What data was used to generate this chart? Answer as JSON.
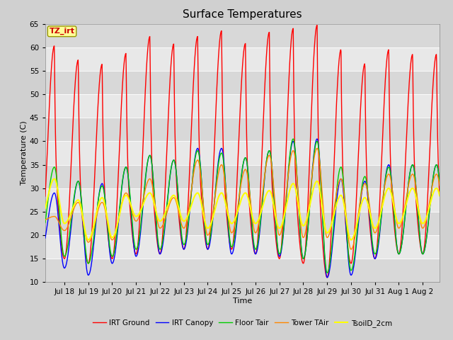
{
  "title": "Surface Temperatures",
  "xlabel": "Time",
  "ylabel": "Temperature (C)",
  "ylim": [
    10,
    65
  ],
  "xtick_labels": [
    "Jul 18",
    "Jul 19",
    "Jul 20",
    "Jul 21",
    "Jul 22",
    "Jul 23",
    "Jul 24",
    "Jul 25",
    "Jul 26",
    "Jul 27",
    "Jul 28",
    "Jul 29",
    "Jul 30",
    "Jul 31",
    "Aug 1",
    "Aug 2"
  ],
  "series": {
    "IRT Ground": {
      "color": "#ff0000",
      "linewidth": 1.0,
      "day_peaks": [
        60.3,
        57.3,
        56.4,
        58.7,
        62.3,
        60.7,
        62.3,
        63.5,
        60.8,
        63.2,
        64.0,
        64.7,
        59.5,
        56.5,
        59.5,
        58.5
      ],
      "night_troughs": [
        17,
        15,
        14,
        15,
        16,
        16,
        17,
        17,
        17,
        16,
        15,
        14,
        11,
        14,
        15,
        16
      ],
      "peak_sharpness": 0.12
    },
    "IRT Canopy": {
      "color": "#0000ff",
      "linewidth": 1.0,
      "day_peaks": [
        29,
        31.5,
        31,
        34.5,
        37,
        36,
        38.5,
        38.5,
        36.5,
        38,
        40,
        40.5,
        32,
        31.5,
        35,
        35
      ],
      "night_troughs": [
        16,
        13,
        11.5,
        14,
        15.5,
        16,
        17,
        17,
        16,
        16,
        15.5,
        15,
        11,
        11.5,
        15,
        16
      ],
      "peak_sharpness": 0.35
    },
    "Floor Tair": {
      "color": "#00cc00",
      "linewidth": 1.0,
      "day_peaks": [
        34.5,
        31.5,
        30.5,
        34.5,
        37,
        36,
        38,
        37.5,
        36.5,
        38,
        40.5,
        40,
        34.5,
        32.5,
        34.5,
        35
      ],
      "night_troughs": [
        18.5,
        15.5,
        14,
        15.5,
        17,
        17,
        18,
        18,
        17.5,
        17,
        16,
        15,
        12,
        12.5,
        16,
        16
      ],
      "peak_sharpness": 0.35
    },
    "Tower TAir": {
      "color": "#ff8800",
      "linewidth": 1.0,
      "day_peaks": [
        24,
        27,
        27,
        29,
        32,
        28,
        36,
        35,
        34,
        37,
        38,
        38.5,
        32,
        31,
        33,
        33
      ],
      "night_troughs": [
        23,
        21,
        18.5,
        19,
        23,
        21.5,
        21.5,
        20,
        20.5,
        20.5,
        20,
        19.5,
        19.5,
        17,
        20.5,
        21.5
      ],
      "peak_sharpness": 0.5
    },
    "TsoilD_2cm": {
      "color": "#ffff00",
      "linewidth": 1.5,
      "day_peaks": [
        32,
        27.5,
        28,
        28.5,
        29,
        28.5,
        29,
        29,
        29,
        29.5,
        31,
        31.5,
        28.5,
        28,
        30,
        30
      ],
      "night_troughs": [
        23.5,
        22.5,
        19,
        19.5,
        24,
        23,
        23,
        21.5,
        22.5,
        22.5,
        21.5,
        22,
        20.5,
        19,
        21.5,
        22.5
      ],
      "peak_sharpness": 0.5
    }
  },
  "annotation": {
    "text": "TZ_irt",
    "bg_color": "#ffff99",
    "border_color": "#999900",
    "text_color": "#cc0000",
    "fontsize": 8,
    "fontweight": "bold"
  },
  "fig_facecolor": "#d0d0d0",
  "ax_facecolor": "#e8e8e8",
  "grid_color": "#ffffff",
  "title_fontsize": 11,
  "label_fontsize": 8,
  "tick_fontsize": 7.5,
  "band_colors": [
    "#d8d8d8",
    "#e8e8e8"
  ]
}
